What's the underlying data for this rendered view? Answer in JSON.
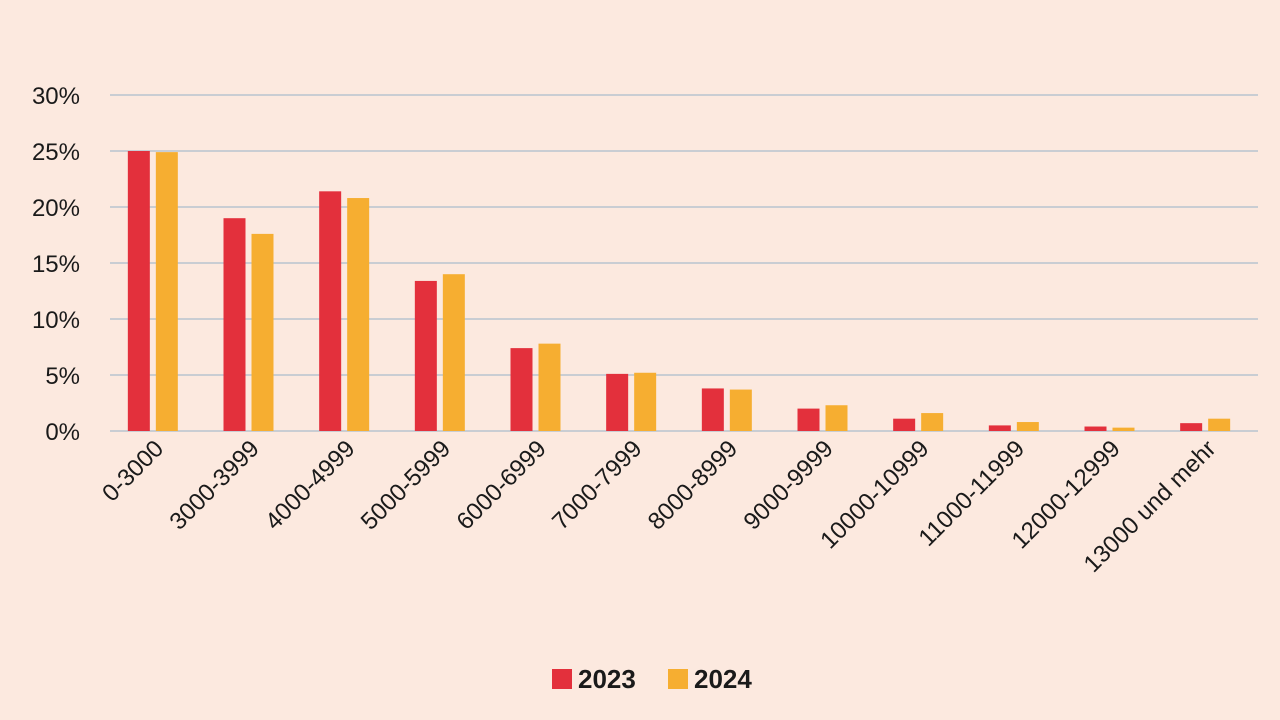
{
  "chart_data": {
    "type": "bar",
    "title": "",
    "xlabel": "",
    "ylabel": "",
    "categories": [
      "0-3000",
      "3000-3999",
      "4000-4999",
      "5000-5999",
      "6000-6999",
      "7000-7999",
      "8000-8999",
      "9000-9999",
      "10000-10999",
      "11000-11999",
      "12000-12999",
      "13000 und mehr"
    ],
    "series": [
      {
        "name": "2023",
        "color": "#e3303c",
        "values": [
          25.0,
          19.0,
          21.4,
          13.4,
          7.4,
          5.1,
          3.8,
          2.0,
          1.1,
          0.5,
          0.4,
          0.7
        ]
      },
      {
        "name": "2024",
        "color": "#f6ae31",
        "values": [
          24.9,
          17.6,
          20.8,
          14.0,
          7.8,
          5.2,
          3.7,
          2.3,
          1.6,
          0.8,
          0.3,
          1.1
        ]
      }
    ],
    "ylim": [
      0,
      30
    ],
    "yticks": [
      0,
      5,
      10,
      15,
      20,
      25,
      30
    ],
    "ytick_suffix": "%",
    "grid": true,
    "legend_position": "bottom-center"
  }
}
